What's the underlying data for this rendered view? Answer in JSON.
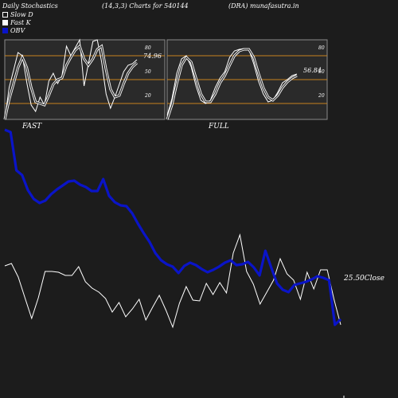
{
  "header": {
    "left": "Daily Stochastics",
    "center": "(14,3,3) Charts for 540144",
    "right": "(DRA) munafasutra.in"
  },
  "legend": [
    {
      "label": "Slow  D",
      "swatch": "slowd"
    },
    {
      "label": "Fast K",
      "swatch": "fastk"
    },
    {
      "label": "OBV",
      "swatch": "obv"
    }
  ],
  "colors": {
    "background": "#1c1c1c",
    "panel": "#2a2a2a",
    "level_line": "#c8821e",
    "obv": "#0a14c8",
    "price": "#ffffff"
  },
  "chart_data": [
    {
      "type": "line",
      "panel": "stochastic",
      "caption": "FAST",
      "ylim": [
        0,
        100
      ],
      "levels": [
        20,
        50,
        80
      ],
      "tick_labels": [
        "80",
        "50",
        "20"
      ],
      "last_value_label": "74.96",
      "series": [
        {
          "name": "Fast K",
          "values": [
            0,
            40,
            62,
            84,
            80,
            46,
            18,
            10,
            28,
            18,
            48,
            58,
            45,
            55,
            92,
            80,
            90,
            100,
            42,
            70,
            98,
            100,
            72,
            32,
            14,
            28,
            44,
            60,
            68,
            70,
            75
          ]
        },
        {
          "name": "Slow  D",
          "values": [
            0,
            25,
            45,
            65,
            78,
            65,
            40,
            22,
            20,
            18,
            30,
            44,
            50,
            52,
            68,
            78,
            87,
            92,
            76,
            68,
            76,
            88,
            92,
            62,
            38,
            28,
            30,
            45,
            58,
            66,
            71
          ]
        }
      ]
    },
    {
      "type": "line",
      "panel": "stochastic",
      "caption": "FULL",
      "ylim": [
        0,
        100
      ],
      "levels": [
        20,
        50,
        80
      ],
      "tick_labels": [
        "80",
        "50",
        "20"
      ],
      "last_value_label": "56.84",
      "series": [
        {
          "name": "Fast K",
          "values": [
            5,
            26,
            58,
            76,
            80,
            66,
            42,
            24,
            20,
            24,
            40,
            52,
            60,
            78,
            86,
            88,
            89,
            88,
            70,
            48,
            32,
            22,
            24,
            34,
            46,
            50,
            55,
            57
          ]
        },
        {
          "name": "Slow  D",
          "values": [
            0,
            18,
            45,
            68,
            78,
            72,
            52,
            32,
            22,
            22,
            32,
            46,
            55,
            68,
            80,
            86,
            88,
            88,
            78,
            58,
            40,
            28,
            24,
            30,
            40,
            47,
            52,
            55
          ]
        }
      ]
    },
    {
      "type": "line",
      "panel": "main",
      "series": [
        {
          "name": "OBV",
          "values": [
            163,
            166,
            214,
            220,
            239,
            250,
            255,
            252,
            244,
            238,
            233,
            228,
            227,
            232,
            235,
            240,
            240,
            225,
            246,
            254,
            258,
            259,
            268,
            281,
            293,
            304,
            318,
            327,
            332,
            335,
            343,
            334,
            330,
            333,
            338,
            342,
            339,
            335,
            330,
            327,
            333,
            332,
            329,
            336,
            346,
            315,
            336,
            356,
            364,
            367,
            358,
            356,
            354,
            351,
            347,
            349,
            352,
            408,
            401
          ]
        },
        {
          "name": "Close",
          "values": [
            334,
            331,
            348,
            374,
            400,
            374,
            341,
            341,
            342,
            346,
            346,
            335,
            354,
            362,
            367,
            375,
            392,
            380,
            398,
            388,
            376,
            402,
            386,
            371,
            390,
            411,
            381,
            360,
            377,
            378,
            356,
            370,
            355,
            368,
            318,
            295,
            341,
            357,
            382,
            367,
            352,
            325,
            344,
            352,
            376,
            342,
            363,
            339,
            339,
            376,
            408
          ]
        }
      ],
      "last_value_label": "25.50Close"
    }
  ]
}
